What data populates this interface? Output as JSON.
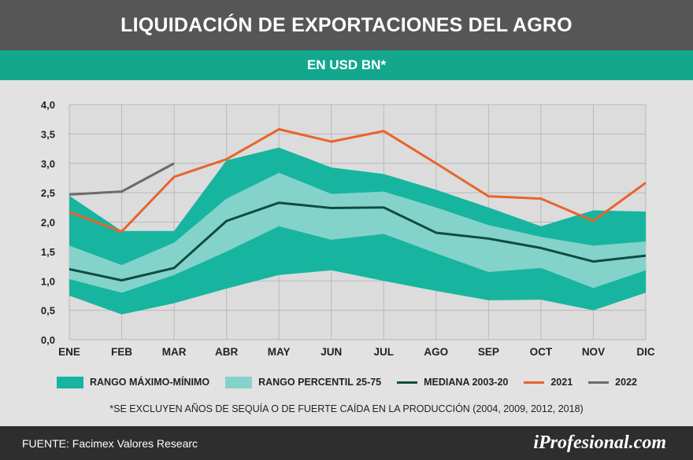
{
  "header": {
    "title": "LIQUIDACIÓN DE EXPORTACIONES DEL AGRO",
    "subtitle": "EN USD BN*"
  },
  "chart_data": {
    "type": "area",
    "categories": [
      "ENE",
      "FEB",
      "MAR",
      "ABR",
      "MAY",
      "JUN",
      "JUL",
      "AGO",
      "SEP",
      "OCT",
      "NOV",
      "DIC"
    ],
    "ylim": [
      0,
      4
    ],
    "yticks": [
      "0,0",
      "0,5",
      "1,0",
      "1,5",
      "2,0",
      "2,5",
      "3,0",
      "3,5",
      "4,0"
    ],
    "grid": true,
    "legend_position": "bottom",
    "bands": [
      {
        "name": "RANGO MÁXIMO-MÍNIMO",
        "color": "#17b5a0",
        "upper": [
          2.45,
          1.85,
          1.85,
          3.05,
          3.27,
          2.93,
          2.82,
          2.55,
          2.25,
          1.93,
          2.2,
          2.18
        ],
        "lower": [
          0.75,
          0.43,
          0.62,
          0.87,
          1.1,
          1.18,
          1.0,
          0.83,
          0.67,
          0.68,
          0.5,
          0.8
        ]
      },
      {
        "name": "RANGO PERCENTIL 25-75",
        "color": "#84d3cb",
        "upper": [
          1.6,
          1.27,
          1.65,
          2.4,
          2.84,
          2.48,
          2.52,
          2.25,
          1.95,
          1.75,
          1.6,
          1.67
        ],
        "lower": [
          1.03,
          0.8,
          1.1,
          1.5,
          1.93,
          1.7,
          1.8,
          1.47,
          1.15,
          1.22,
          0.88,
          1.18
        ]
      }
    ],
    "series": [
      {
        "name": "MEDIANA 2003-20",
        "color": "#0d4d3f",
        "values": [
          1.2,
          1.01,
          1.22,
          2.02,
          2.33,
          2.24,
          2.25,
          1.82,
          1.72,
          1.56,
          1.33,
          1.43
        ]
      },
      {
        "name": "2021",
        "color": "#e8642a",
        "values": [
          2.17,
          1.84,
          2.77,
          3.07,
          3.58,
          3.37,
          3.55,
          3.0,
          2.44,
          2.4,
          2.02,
          2.67
        ]
      },
      {
        "name": "2022",
        "color": "#6b6b6b",
        "values": [
          2.47,
          2.52,
          3.0,
          null,
          null,
          null,
          null,
          null,
          null,
          null,
          null,
          null
        ]
      }
    ]
  },
  "legend": {
    "minmax": "RANGO MÁXIMO-MÍNIMO",
    "p2575": "RANGO PERCENTIL 25-75",
    "median": "MEDIANA 2003-20",
    "y2021": "2021",
    "y2022": "2022"
  },
  "footnote": "*SE EXCLUYEN AÑOS DE SEQUÍA O DE FUERTE CAÍDA EN LA PRODUCCIÓN (2004, 2009, 2012, 2018)",
  "footer": {
    "source": "FUENTE: Facimex Valores Researc",
    "brand": "iProfesional.com"
  }
}
